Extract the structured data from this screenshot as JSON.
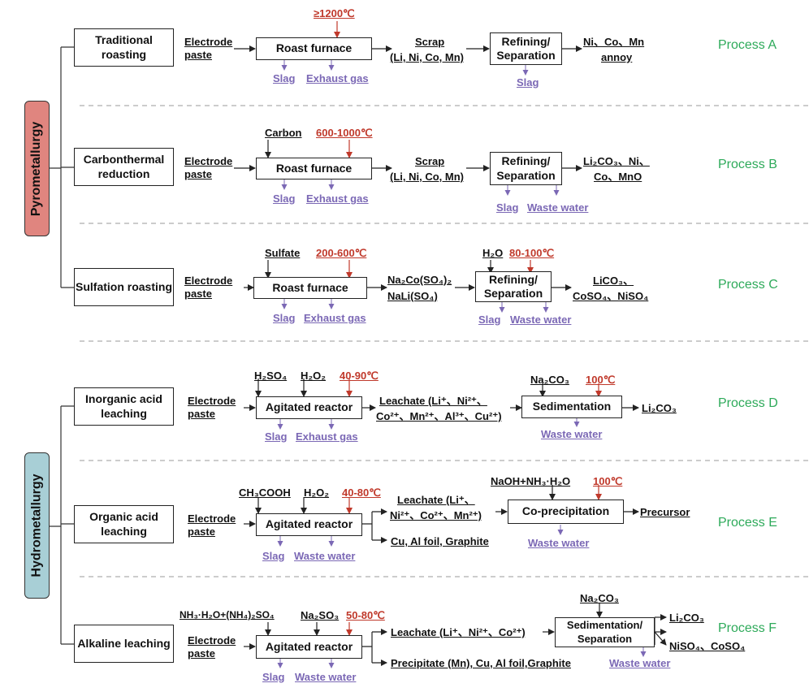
{
  "categories": {
    "pyro": "Pyrometallurgy",
    "hydro": "Hydrometallurgy"
  },
  "colors": {
    "pyro_bg": "#e0857f",
    "hydro_bg": "#a8cfd6",
    "temperature": "#c0392b",
    "byproduct": "#7b68b5",
    "process_label": "#2eaa5a"
  },
  "methods": {
    "a": "Traditional roasting",
    "b": "Carbonthermal reduction",
    "c": "Sulfation roasting",
    "d": "Inorganic acid leaching",
    "e": "Organic acid leaching",
    "f": "Alkaline leaching"
  },
  "common": {
    "electrode": "Electrode paste",
    "roast": "Roast furnace",
    "agitated": "Agitated reactor",
    "slag": "Slag",
    "exhaust": "Exhaust gas",
    "waste": "Waste water",
    "refining": "Refining/ Separation"
  },
  "processes": {
    "a": {
      "label": "Process A",
      "temp": "≥1200℃",
      "scrap1": "Scrap",
      "scrap2": "(Li, Ni, Co, Mn)",
      "out1": "Ni、Co、Mn",
      "out2": "annoy"
    },
    "b": {
      "label": "Process B",
      "reagent": "Carbon",
      "temp": "600-1000℃",
      "scrap1": "Scrap",
      "scrap2": "(Li, Ni, Co, Mn)",
      "out1": "Li₂CO₃、Ni、",
      "out2": "Co、MnO"
    },
    "c": {
      "label": "Process C",
      "reagent": "Sulfate",
      "temp": "200-600℃",
      "mid1": "Na₂Co(SO₄)₂",
      "mid2": "NaLi(SO₄)",
      "reagent2": "H₂O",
      "temp2": "80-100℃",
      "out1": "LiCO₃、",
      "out2": "CoSO₄、NiSO₄"
    },
    "d": {
      "label": "Process D",
      "reagent1": "H₂SO₄",
      "reagent2": "H₂O₂",
      "temp": "40-90℃",
      "leach1": "Leachate (Li⁺、Ni²⁺、",
      "leach2": "Co²⁺、Mn²⁺、Al³⁺、Cu²⁺)",
      "reagent3": "Na₂CO₃",
      "temp2": "100℃",
      "box": "Sedimentation",
      "out": "Li₂CO₃"
    },
    "e": {
      "label": "Process E",
      "reagent1": "CH₃COOH",
      "reagent2": "H₂O₂",
      "temp": "40-80℃",
      "leach1": "Leachate (Li⁺、",
      "leach2": "Ni²⁺、Co²⁺、Mn²⁺)",
      "foil": "Cu, Al foil, Graphite",
      "reagent3": "NaOH+NH₃·H₂O",
      "temp2": "100℃",
      "box": "Co-precipitation",
      "out": "Precursor"
    },
    "f": {
      "label": "Process F",
      "reagent1": "NH₃·H₂O+(NH₄)₂SO₄",
      "reagent2": "Na₂SO₃",
      "temp": "50-80℃",
      "leach": "Leachate (Li⁺、Ni²⁺、Co²⁺)",
      "precip": "Precipitate (Mn), Cu, Al foil,Graphite",
      "reagent3": "Na₂CO₃",
      "box": "Sedimentation/ Separation",
      "out1": "Li₂CO₃",
      "out2": "NiSO₄、CoSO₄"
    }
  }
}
